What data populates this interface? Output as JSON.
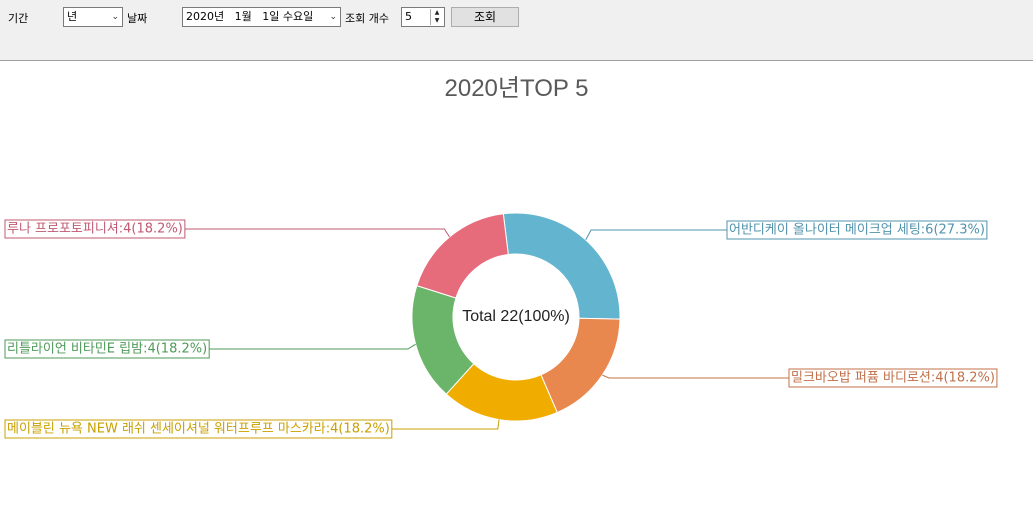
{
  "toolbar": {
    "period_label": "기간",
    "period_value": "년",
    "date_label": "날짜",
    "date_value": "2020년   1월   1일 수요일",
    "count_label": "조회 개수",
    "count_value": "5",
    "search_button": "조회"
  },
  "chart_data": {
    "type": "pie",
    "style": "doughnut",
    "title": "2020년TOP 5",
    "center_text": "Total 22(100%)",
    "total": 22,
    "slices": [
      {
        "name": "어반디케이 올나이터 메이크업 세팅",
        "value": 6,
        "percent": "27.3%",
        "label": "어반디케이 올나이터 메이크업 세팅:6(27.3%)",
        "color": "#63b4cf"
      },
      {
        "name": "밀크바오밥 퍼퓸 바디로션",
        "value": 4,
        "percent": "18.2%",
        "label": "밀크바오밥 퍼퓸 바디로션:4(18.2%)",
        "color": "#e8884f"
      },
      {
        "name": "메이블린 뉴욕 NEW 래쉬 센세이셔널 워터프루프 마스카라",
        "value": 4,
        "percent": "18.2%",
        "label": "메이블린 뉴욕 NEW 래쉬 센세이셔널 워터프루프 마스카라:4(18.2%)",
        "color": "#f0ad00"
      },
      {
        "name": "리틀라이언 비타민E 립밤",
        "value": 4,
        "percent": "18.2%",
        "label": "리틀라이언 비타민E 립밤:4(18.2%)",
        "color": "#6ab56a"
      },
      {
        "name": "루나 프로포토피니셔",
        "value": 4,
        "percent": "18.2%",
        "label": "루나 프로포토피니셔:4(18.2%)",
        "color": "#e66b7b"
      }
    ],
    "label_colors": [
      "#5193ad",
      "#c0704a",
      "#c9a000",
      "#4e9a58",
      "#c05a72"
    ]
  }
}
